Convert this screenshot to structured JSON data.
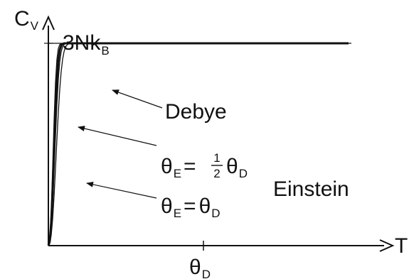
{
  "chart_data": {
    "type": "line",
    "title": "",
    "xlabel": "T",
    "ylabel": {
      "main": "C",
      "sub": "V"
    },
    "x_tick": {
      "main": "θ",
      "sub": "D"
    },
    "asymptote_label": {
      "main": "3Nk",
      "sub": "B"
    },
    "grid": false,
    "legend": "none",
    "series": [
      {
        "name": "",
        "k": 0.3,
        "stroke_weight": "thin"
      },
      {
        "name": "Debye",
        "k": 0.255,
        "stroke_weight": "thick"
      },
      {
        "name": "",
        "k": 0.22,
        "stroke_weight": "thin"
      },
      {
        "name": "",
        "k": 0.18,
        "stroke_weight": "thin"
      }
    ],
    "annotations": {
      "debye": "Debye",
      "einstein": "Einstein",
      "half": {
        "lhs_main": "θ",
        "lhs_sub": "E",
        "eq": "=",
        "num": "1",
        "den": "2",
        "rhs_main": "θ",
        "rhs_sub": "D"
      },
      "equal": {
        "lhs_main": "θ",
        "lhs_sub": "E",
        "eq": "=",
        "rhs_main": "θ",
        "rhs_sub": "D"
      }
    },
    "colors": {
      "axis": "#111111",
      "curve": "#111111"
    }
  }
}
